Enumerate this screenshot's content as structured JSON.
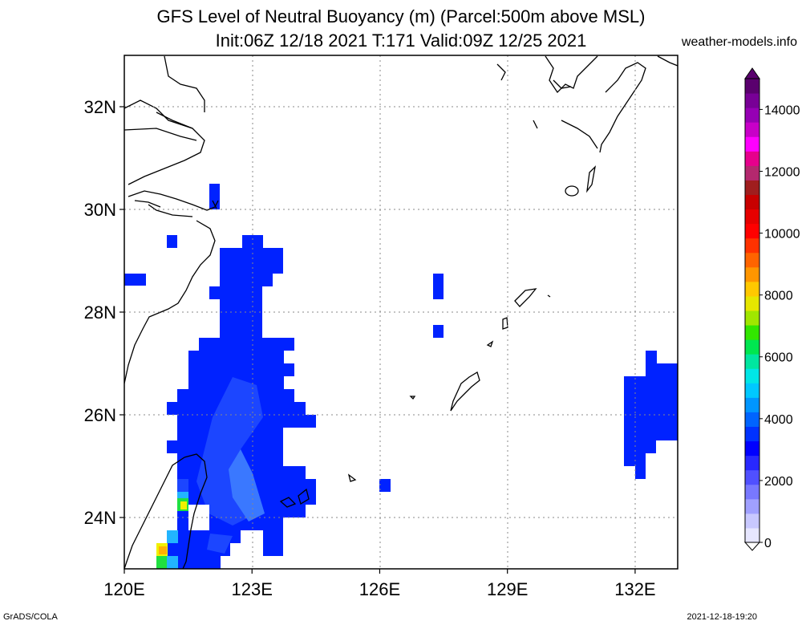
{
  "header": {
    "title_line1": "GFS Level of Neutral Buoyancy (m) (Parcel:500m above MSL)",
    "title_line2": "Init:06Z 12/18 2021 T:171 Valid:09Z 12/25 2021",
    "site": "weather-models.info"
  },
  "footer": {
    "left": "GrADS/COLA",
    "right": "2021-12-18-19:20"
  },
  "map": {
    "lon_range": [
      120,
      133
    ],
    "lat_range": [
      23,
      33
    ],
    "lon_ticks": [
      {
        "v": 120,
        "label": "120E"
      },
      {
        "v": 123,
        "label": "123E"
      },
      {
        "v": 126,
        "label": "126E"
      },
      {
        "v": 129,
        "label": "129E"
      },
      {
        "v": 132,
        "label": "132E"
      }
    ],
    "lat_ticks": [
      {
        "v": 24,
        "label": "24N"
      },
      {
        "v": 26,
        "label": "26N"
      },
      {
        "v": 28,
        "label": "28N"
      },
      {
        "v": 30,
        "label": "30N"
      },
      {
        "v": 32,
        "label": "32N"
      }
    ]
  },
  "colorbar": {
    "labels": [
      "0",
      "2000",
      "4000",
      "6000",
      "8000",
      "10000",
      "12000",
      "14000"
    ],
    "colors": [
      "#e6e6ff",
      "#c8c8ff",
      "#a0a0ff",
      "#7878ff",
      "#5050ff",
      "#2828ff",
      "#0000ff",
      "#0032ff",
      "#0064ff",
      "#0096ff",
      "#00c8ff",
      "#00e6e6",
      "#00e6a0",
      "#00e650",
      "#32e600",
      "#a0e600",
      "#e6e600",
      "#ffc800",
      "#ff9600",
      "#ff6400",
      "#ff3200",
      "#ff0000",
      "#e60000",
      "#c80000",
      "#a01e1e",
      "#b4286e",
      "#e6008c",
      "#ff00ff",
      "#c800c8",
      "#9600b4",
      "#780096",
      "#5a006e"
    ]
  },
  "field": {
    "note_colors": {
      "base": "#0022ff",
      "mid": "#1c46ff",
      "light": "#3a78ff",
      "cyan": "#22b4ff",
      "green": "#20e040",
      "yellow": "#f0f000",
      "orange": "#ffb000"
    }
  }
}
